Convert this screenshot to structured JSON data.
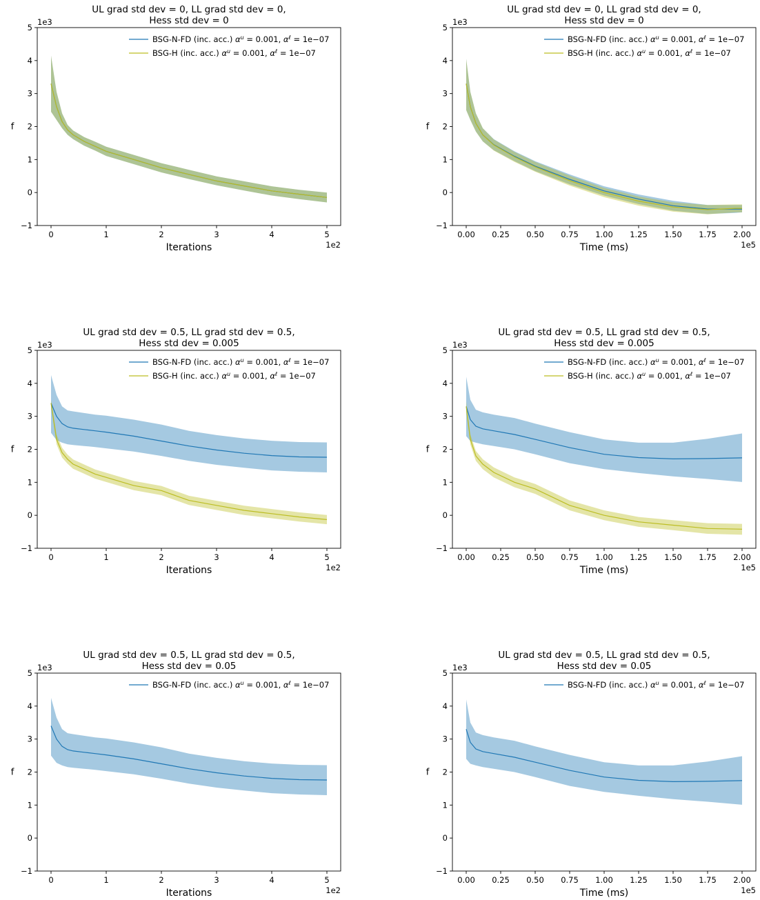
{
  "chart_data": [
    {
      "type": "line",
      "title": [
        "UL grad std dev = 0, LL grad std dev = 0,",
        "Hess std dev = 0"
      ],
      "xlabel": "Iterations",
      "ylabel": "f",
      "x_ticks": [
        "0",
        "1",
        "2",
        "3",
        "4",
        "5"
      ],
      "x_offset": "1e2",
      "y_ticks": [
        "−1",
        "0",
        "1",
        "2",
        "3",
        "4",
        "5"
      ],
      "y_offset": "1e3",
      "xlim": [
        0,
        500
      ],
      "ylim": [
        -1000,
        5000
      ],
      "x": [
        0,
        10,
        20,
        30,
        40,
        60,
        80,
        100,
        150,
        200,
        250,
        300,
        350,
        400,
        450,
        500
      ],
      "series": [
        {
          "name": "BSG-N-FD (inc. acc.) $\\alpha^u = 0.001$, $\\alpha^\\ell = 1e-07$",
          "color": "#1f77b4",
          "mean": [
            3300,
            2600,
            2150,
            1900,
            1750,
            1550,
            1400,
            1250,
            1000,
            750,
            550,
            350,
            200,
            50,
            -50,
            -150
          ],
          "lower": [
            2450,
            2200,
            1950,
            1750,
            1620,
            1420,
            1270,
            1110,
            860,
            610,
            410,
            220,
            60,
            -90,
            -200,
            -300
          ],
          "upper": [
            4150,
            3050,
            2400,
            2050,
            1880,
            1680,
            1540,
            1390,
            1140,
            890,
            690,
            490,
            340,
            190,
            80,
            0
          ]
        },
        {
          "name": "BSG-H (inc. acc.) $\\alpha^u = 0.001$, $\\alpha^\\ell = 1e-07$",
          "color": "#bcbd22",
          "mean": [
            3300,
            2600,
            2150,
            1900,
            1750,
            1550,
            1400,
            1250,
            1000,
            750,
            550,
            350,
            200,
            50,
            -50,
            -150
          ],
          "lower": [
            2450,
            2200,
            1950,
            1750,
            1620,
            1420,
            1270,
            1110,
            860,
            610,
            410,
            220,
            60,
            -90,
            -200,
            -300
          ],
          "upper": [
            4150,
            3050,
            2400,
            2050,
            1880,
            1680,
            1540,
            1390,
            1140,
            890,
            690,
            490,
            340,
            190,
            80,
            0
          ]
        }
      ]
    },
    {
      "type": "line",
      "title": [
        "UL grad std dev = 0, LL grad std dev = 0,",
        "Hess std dev = 0"
      ],
      "xlabel": "Time (ms)",
      "ylabel": "f",
      "x_ticks": [
        "0.00",
        "0.25",
        "0.50",
        "0.75",
        "1.00",
        "1.25",
        "1.50",
        "1.75",
        "2.00"
      ],
      "x_offset": "1e5",
      "y_ticks": [
        "−1",
        "0",
        "1",
        "2",
        "3",
        "4",
        "5"
      ],
      "y_offset": "1e3",
      "xlim": [
        0,
        200000
      ],
      "ylim": [
        -1000,
        5000
      ],
      "x": [
        0,
        3000,
        7000,
        12000,
        20000,
        35000,
        50000,
        75000,
        100000,
        125000,
        150000,
        175000,
        195000,
        200000
      ],
      "series": [
        {
          "name": "BSG-N-FD (inc. acc.) $\\alpha^u = 0.001$, $\\alpha^\\ell = 1e-07$",
          "color": "#1f77b4",
          "mean": [
            3300,
            2600,
            2100,
            1750,
            1450,
            1100,
            800,
            400,
            50,
            -200,
            -400,
            -500,
            -500,
            -500
          ],
          "lower": [
            2500,
            2200,
            1850,
            1550,
            1280,
            950,
            650,
            250,
            -90,
            -350,
            -550,
            -650,
            -620,
            -600
          ],
          "upper": [
            4050,
            3050,
            2400,
            1950,
            1620,
            1250,
            950,
            550,
            190,
            -60,
            -250,
            -380,
            -380,
            -380
          ]
        },
        {
          "name": "BSG-H (inc. acc.) $\\alpha^u = 0.001$, $\\alpha^\\ell = 1e-07$",
          "color": "#bcbd22",
          "mean": [
            3300,
            2600,
            2100,
            1750,
            1440,
            1080,
            780,
            360,
            0,
            -260,
            -440,
            -520,
            -480,
            -480
          ],
          "lower": [
            2500,
            2200,
            1850,
            1550,
            1270,
            930,
            630,
            210,
            -140,
            -400,
            -580,
            -660,
            -600,
            -600
          ],
          "upper": [
            4050,
            3050,
            2400,
            1950,
            1610,
            1230,
            930,
            510,
            140,
            -120,
            -300,
            -380,
            -360,
            -360
          ]
        }
      ]
    },
    {
      "type": "line",
      "title": [
        "UL grad std dev = 0.5, LL grad std dev = 0.5,",
        "Hess std dev = 0.005"
      ],
      "xlabel": "Iterations",
      "ylabel": "f",
      "x_ticks": [
        "0",
        "1",
        "2",
        "3",
        "4",
        "5"
      ],
      "x_offset": "1e2",
      "y_ticks": [
        "−1",
        "0",
        "1",
        "2",
        "3",
        "4",
        "5"
      ],
      "y_offset": "1e3",
      "xlim": [
        0,
        500
      ],
      "ylim": [
        -1000,
        5000
      ],
      "x": [
        0,
        10,
        20,
        30,
        40,
        60,
        80,
        100,
        150,
        200,
        250,
        300,
        350,
        400,
        450,
        500
      ],
      "series": [
        {
          "name": "BSG-N-FD (inc. acc.) $\\alpha^u = 0.001$, $\\alpha^\\ell = 1e-07$",
          "color": "#1f77b4",
          "mean": [
            3400,
            3000,
            2780,
            2680,
            2640,
            2600,
            2560,
            2520,
            2400,
            2250,
            2100,
            1980,
            1880,
            1810,
            1770,
            1760
          ],
          "lower": [
            2500,
            2280,
            2200,
            2150,
            2130,
            2100,
            2070,
            2030,
            1930,
            1800,
            1650,
            1530,
            1440,
            1360,
            1320,
            1300
          ],
          "upper": [
            4250,
            3650,
            3300,
            3180,
            3150,
            3100,
            3050,
            3020,
            2900,
            2750,
            2560,
            2430,
            2330,
            2260,
            2220,
            2210
          ]
        },
        {
          "name": "BSG-H (inc. acc.) $\\alpha^u = 0.001$, $\\alpha^\\ell = 1e-07$",
          "color": "#bcbd22",
          "mean": [
            3400,
            2300,
            1900,
            1700,
            1550,
            1400,
            1250,
            1150,
            900,
            750,
            450,
            300,
            150,
            50,
            -50,
            -130
          ],
          "lower": [
            3300,
            2150,
            1750,
            1560,
            1410,
            1260,
            1110,
            1010,
            760,
            610,
            310,
            160,
            10,
            -90,
            -190,
            -270
          ],
          "upper": [
            3500,
            2450,
            2050,
            1840,
            1690,
            1540,
            1390,
            1290,
            1040,
            890,
            590,
            440,
            290,
            190,
            90,
            10
          ]
        }
      ]
    },
    {
      "type": "line",
      "title": [
        "UL grad std dev = 0.5, LL grad std dev = 0.5,",
        "Hess std dev = 0.005"
      ],
      "xlabel": "Time (ms)",
      "ylabel": "f",
      "x_ticks": [
        "0.00",
        "0.25",
        "0.50",
        "0.75",
        "1.00",
        "1.25",
        "1.50",
        "1.75",
        "2.00"
      ],
      "x_offset": "1e5",
      "y_ticks": [
        "−1",
        "0",
        "1",
        "2",
        "3",
        "4",
        "5"
      ],
      "y_offset": "1e3",
      "xlim": [
        0,
        200000
      ],
      "ylim": [
        -1000,
        5000
      ],
      "x": [
        0,
        3000,
        7000,
        12000,
        20000,
        35000,
        50000,
        75000,
        100000,
        125000,
        150000,
        175000,
        200000
      ],
      "series": [
        {
          "name": "BSG-N-FD (inc. acc.) $\\alpha^u = 0.001$, $\\alpha^\\ell = 1e-07$",
          "color": "#1f77b4",
          "mean": [
            3300,
            2900,
            2700,
            2620,
            2560,
            2450,
            2300,
            2050,
            1850,
            1750,
            1710,
            1720,
            1740
          ],
          "lower": [
            2400,
            2250,
            2200,
            2150,
            2100,
            2000,
            1850,
            1580,
            1400,
            1280,
            1180,
            1100,
            1010
          ],
          "upper": [
            4200,
            3500,
            3200,
            3120,
            3050,
            2950,
            2780,
            2520,
            2300,
            2200,
            2200,
            2320,
            2480
          ]
        },
        {
          "name": "BSG-H (inc. acc.) $\\alpha^u = 0.001$, $\\alpha^\\ell = 1e-07$",
          "color": "#bcbd22",
          "mean": [
            3300,
            2300,
            1800,
            1550,
            1300,
            1000,
            800,
            300,
            0,
            -200,
            -300,
            -400,
            -420
          ],
          "lower": [
            3150,
            2150,
            1650,
            1400,
            1150,
            850,
            650,
            150,
            -150,
            -350,
            -450,
            -560,
            -590
          ],
          "upper": [
            3450,
            2450,
            1950,
            1700,
            1450,
            1150,
            950,
            450,
            150,
            -50,
            -150,
            -240,
            -260
          ]
        }
      ]
    },
    {
      "type": "line",
      "title": [
        "UL grad std dev = 0.5, LL grad std dev = 0.5,",
        "Hess std dev = 0.05"
      ],
      "xlabel": "Iterations",
      "ylabel": "f",
      "x_ticks": [
        "0",
        "1",
        "2",
        "3",
        "4",
        "5"
      ],
      "x_offset": "1e2",
      "y_ticks": [
        "−1",
        "0",
        "1",
        "2",
        "3",
        "4",
        "5"
      ],
      "y_offset": "1e3",
      "xlim": [
        0,
        500
      ],
      "ylim": [
        -1000,
        5000
      ],
      "x": [
        0,
        10,
        20,
        30,
        40,
        60,
        80,
        100,
        150,
        200,
        250,
        300,
        350,
        400,
        450,
        500
      ],
      "series": [
        {
          "name": "BSG-N-FD (inc. acc.) $\\alpha^u = 0.001$, $\\alpha^\\ell = 1e-07$",
          "color": "#1f77b4",
          "mean": [
            3400,
            3000,
            2780,
            2680,
            2640,
            2600,
            2560,
            2520,
            2400,
            2250,
            2100,
            1980,
            1880,
            1810,
            1770,
            1760
          ],
          "lower": [
            2500,
            2280,
            2200,
            2150,
            2130,
            2100,
            2070,
            2030,
            1930,
            1800,
            1650,
            1530,
            1440,
            1360,
            1320,
            1300
          ],
          "upper": [
            4250,
            3650,
            3300,
            3180,
            3150,
            3100,
            3050,
            3020,
            2900,
            2750,
            2560,
            2430,
            2330,
            2260,
            2220,
            2210
          ]
        }
      ]
    },
    {
      "type": "line",
      "title": [
        "UL grad std dev = 0.5, LL grad std dev = 0.5,",
        "Hess std dev = 0.05"
      ],
      "xlabel": "Time (ms)",
      "ylabel": "f",
      "x_ticks": [
        "0.00",
        "0.25",
        "0.50",
        "0.75",
        "1.00",
        "1.25",
        "1.50",
        "1.75",
        "2.00"
      ],
      "x_offset": "1e5",
      "y_ticks": [
        "−1",
        "0",
        "1",
        "2",
        "3",
        "4",
        "5"
      ],
      "y_offset": "1e3",
      "xlim": [
        0,
        200000
      ],
      "ylim": [
        -1000,
        5000
      ],
      "x": [
        0,
        3000,
        7000,
        12000,
        20000,
        35000,
        50000,
        75000,
        100000,
        125000,
        150000,
        175000,
        200000
      ],
      "series": [
        {
          "name": "BSG-N-FD (inc. acc.) $\\alpha^u = 0.001$, $\\alpha^\\ell = 1e-07$",
          "color": "#1f77b4",
          "mean": [
            3300,
            2900,
            2700,
            2620,
            2560,
            2450,
            2300,
            2050,
            1850,
            1750,
            1710,
            1720,
            1740
          ],
          "lower": [
            2400,
            2250,
            2200,
            2150,
            2100,
            2000,
            1850,
            1580,
            1400,
            1280,
            1180,
            1100,
            1010
          ],
          "upper": [
            4200,
            3500,
            3200,
            3120,
            3050,
            2950,
            2780,
            2520,
            2300,
            2200,
            2200,
            2320,
            2480
          ]
        }
      ]
    }
  ]
}
